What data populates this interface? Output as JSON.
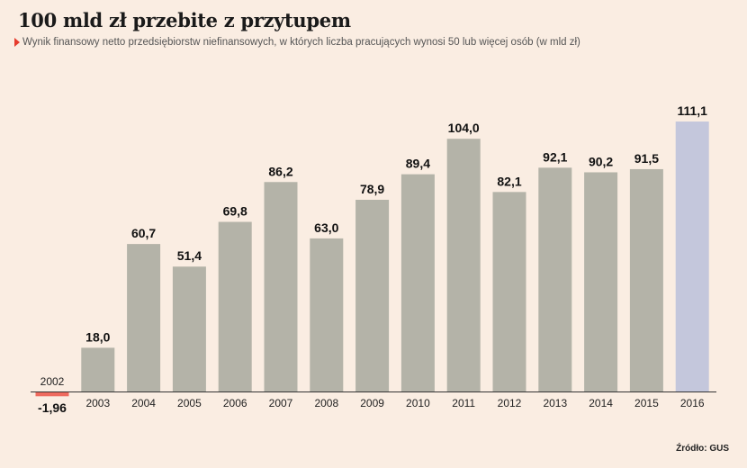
{
  "header": {
    "title": "100 mld zł przebite z przytupem",
    "subtitle": "Wynik finansowy netto przedsiębiorstw niefinansowych, w których liczba pracujących wynosi 50 lub więcej osób (w mld zł)"
  },
  "footer": {
    "source": "Źródło: GUS"
  },
  "colors": {
    "background": "#faede2",
    "bar": "#b4b3a8",
    "bar_negative": "#ee6a5e",
    "bar_highlight": "#c4c7dc",
    "axis": "#333333",
    "marker": "#e63c2e"
  },
  "chart_data": {
    "type": "bar",
    "title": "100 mld zł przebite z przytupem",
    "subtitle": "Wynik finansowy netto przedsiębiorstw niefinansowych, w których liczba pracujących wynosi 50 lub więcej osób (w mld zł)",
    "xlabel": "",
    "ylabel": "",
    "categories": [
      "2002",
      "2003",
      "2004",
      "2005",
      "2006",
      "2007",
      "2008",
      "2009",
      "2010",
      "2011",
      "2012",
      "2013",
      "2014",
      "2015",
      "2016"
    ],
    "values": [
      -1.96,
      18.0,
      60.7,
      51.4,
      69.8,
      86.2,
      63.0,
      78.9,
      89.4,
      104.0,
      82.1,
      92.1,
      90.2,
      91.5,
      111.1
    ],
    "value_labels": [
      "-1,96",
      "18,0",
      "60,7",
      "51,4",
      "69,8",
      "86,2",
      "63,0",
      "78,9",
      "89,4",
      "104,0",
      "82,1",
      "92,1",
      "90,2",
      "91,5",
      "111,1"
    ],
    "highlight_category": "2016",
    "ylim": [
      -2,
      115
    ],
    "grid": false,
    "legend": "none",
    "y_axis_visible": false
  }
}
